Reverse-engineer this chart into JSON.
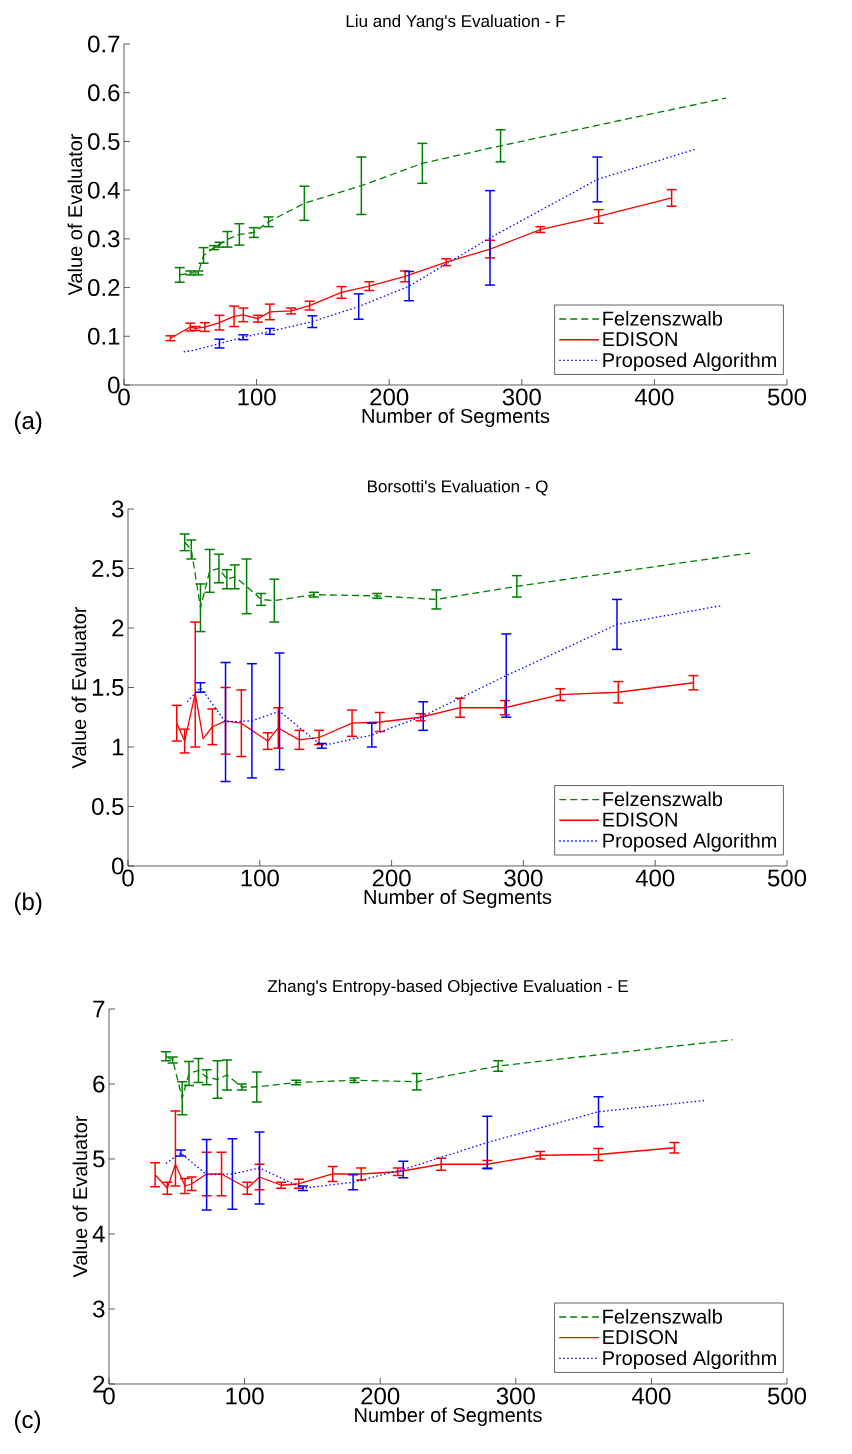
{
  "chart_data": [
    {
      "type": "line",
      "title": "Liu and Yang's Evaluation - F",
      "xlabel": "Number of Segments",
      "ylabel": "Value of Evaluator",
      "annotations": [
        "(a)"
      ],
      "xlim": [
        0,
        500
      ],
      "ylim": [
        0,
        0.7
      ],
      "xticks": [
        0,
        100,
        200,
        300,
        400,
        500
      ],
      "yticks": [
        0,
        0.1,
        0.2,
        0.3,
        0.4,
        0.5,
        0.6,
        0.7
      ],
      "legend": "bottom right",
      "series": [
        {
          "name": "Felzenszwalb",
          "color": "#008000",
          "line_style": "dashed",
          "x": [
            42,
            50,
            56,
            60,
            68,
            72,
            78,
            87,
            98,
            109,
            136,
            179,
            225,
            284,
            454
          ],
          "values": [
            0.226,
            0.23,
            0.23,
            0.266,
            0.282,
            0.288,
            0.299,
            0.309,
            0.313,
            0.335,
            0.373,
            0.409,
            0.455,
            0.491,
            0.589
          ],
          "errors": [
            0.015,
            0.004,
            0.004,
            0.016,
            0.004,
            0.005,
            0.016,
            0.022,
            0.01,
            0.01,
            0.035,
            0.059,
            0.041,
            0.033,
            null
          ]
        },
        {
          "name": "EDISON",
          "color": "#ff0000",
          "line_style": "solid",
          "x": [
            35,
            50,
            54,
            61,
            72,
            83,
            90,
            101,
            110,
            126,
            140,
            164,
            185,
            212,
            243,
            276,
            314,
            358,
            413
          ],
          "values": [
            0.096,
            0.119,
            0.116,
            0.119,
            0.128,
            0.141,
            0.144,
            0.136,
            0.15,
            0.152,
            0.163,
            0.19,
            0.203,
            0.223,
            0.252,
            0.279,
            0.319,
            0.346,
            0.384
          ],
          "errors": [
            0.005,
            0.008,
            0.004,
            0.009,
            0.015,
            0.021,
            0.014,
            0.007,
            0.016,
            0.006,
            0.009,
            0.012,
            0.009,
            0.011,
            0.007,
            0.018,
            0.006,
            0.014,
            0.017
          ]
        },
        {
          "name": "Proposed Algorithm",
          "color": "#0000ff",
          "line_style": "dotted",
          "x": [
            45,
            52,
            72,
            90,
            110,
            142,
            177,
            215,
            276,
            357,
            431
          ],
          "values": [
            0.068,
            0.071,
            0.085,
            0.098,
            0.11,
            0.13,
            0.161,
            0.203,
            0.302,
            0.422,
            0.484
          ],
          "errors": [
            null,
            null,
            0.009,
            0.005,
            0.006,
            0.012,
            0.026,
            0.03,
            0.097,
            0.046,
            null
          ]
        }
      ]
    },
    {
      "type": "line",
      "title": "Borsotti's Evaluation - Q",
      "xlabel": "Number of Segments",
      "ylabel": "Value of Evaluator",
      "annotations": [
        "(b)"
      ],
      "xlim": [
        0,
        500
      ],
      "ylim": [
        0,
        3
      ],
      "xticks": [
        0,
        100,
        200,
        300,
        400,
        500
      ],
      "yticks": [
        0,
        0.5,
        1,
        1.5,
        2,
        2.5,
        3
      ],
      "legend": "bottom right",
      "series": [
        {
          "name": "Felzenszwalb",
          "color": "#008000",
          "line_style": "dashed",
          "x": [
            43,
            48,
            55,
            62,
            69,
            75,
            81,
            90,
            101,
            111,
            141,
            189,
            234,
            295,
            472
          ],
          "values": [
            2.72,
            2.66,
            2.17,
            2.48,
            2.5,
            2.41,
            2.43,
            2.35,
            2.24,
            2.23,
            2.28,
            2.27,
            2.24,
            2.35,
            2.63
          ],
          "errors": [
            0.07,
            0.08,
            0.2,
            0.18,
            0.12,
            0.08,
            0.1,
            0.23,
            0.05,
            0.18,
            0.02,
            0.02,
            0.08,
            0.09,
            null
          ]
        },
        {
          "name": "EDISON",
          "color": "#ff0000",
          "line_style": "solid",
          "x": [
            37,
            43,
            51,
            57,
            64,
            74,
            86,
            106,
            114,
            130,
            145,
            170,
            191,
            222,
            252,
            286,
            328,
            372,
            429
          ],
          "values": [
            1.2,
            1.05,
            1.45,
            1.07,
            1.17,
            1.22,
            1.2,
            1.05,
            1.16,
            1.06,
            1.08,
            1.2,
            1.21,
            1.25,
            1.33,
            1.33,
            1.44,
            1.46,
            1.54
          ],
          "errors": [
            0.15,
            0.1,
            [
              1.0,
              2.05
            ],
            null,
            0.15,
            0.28,
            0.28,
            0.07,
            0.17,
            0.08,
            0.06,
            0.11,
            0.08,
            0.03,
            0.08,
            0.06,
            0.05,
            0.09,
            0.06
          ]
        },
        {
          "name": "Proposed Algorithm",
          "color": "#0000ff",
          "line_style": "dotted",
          "x": [
            45,
            55,
            74,
            94,
            115,
            147,
            185,
            224,
            287,
            371,
            451
          ],
          "values": [
            1.38,
            1.5,
            1.21,
            1.22,
            1.3,
            1.01,
            1.1,
            1.26,
            1.6,
            2.03,
            2.19
          ],
          "errors": [
            null,
            0.04,
            0.5,
            0.48,
            0.49,
            0.02,
            0.1,
            0.12,
            0.35,
            0.21,
            null
          ]
        }
      ]
    },
    {
      "type": "line",
      "title": "Zhang's Entropy-based Objective Evaluation - E",
      "xlabel": "Number of Segments",
      "ylabel": "Value of Evaluator",
      "annotations": [
        "(c)"
      ],
      "xlim": [
        0,
        500
      ],
      "ylim": [
        2,
        7
      ],
      "xticks": [
        0,
        100,
        200,
        300,
        400,
        500
      ],
      "yticks": [
        2,
        3,
        4,
        5,
        6,
        7
      ],
      "legend": "bottom right",
      "series": [
        {
          "name": "Felzenszwalb",
          "color": "#008000",
          "line_style": "dashed",
          "x": [
            42,
            47,
            54,
            59,
            66,
            72,
            80,
            87,
            98,
            109,
            138,
            181,
            227,
            287,
            460
          ],
          "values": [
            6.37,
            6.32,
            5.81,
            6.14,
            6.18,
            6.09,
            6.06,
            6.12,
            5.96,
            5.96,
            6.02,
            6.05,
            6.03,
            6.24,
            6.59
          ],
          "errors": [
            0.06,
            0.04,
            0.22,
            0.16,
            0.16,
            0.1,
            0.25,
            0.2,
            0.04,
            0.2,
            0.03,
            0.03,
            0.11,
            0.07,
            null
          ]
        },
        {
          "name": "EDISON",
          "color": "#ff0000",
          "line_style": "solid",
          "x": [
            34,
            43,
            49,
            56,
            61,
            72,
            83,
            102,
            111,
            127,
            140,
            165,
            186,
            213,
            245,
            279,
            318,
            361,
            417
          ],
          "values": [
            4.79,
            4.61,
            4.93,
            4.64,
            4.67,
            4.8,
            4.8,
            4.61,
            4.76,
            4.65,
            4.67,
            4.8,
            4.8,
            4.83,
            4.93,
            4.93,
            5.05,
            5.06,
            5.15
          ],
          "errors": [
            0.16,
            0.08,
            [
              4.64,
              5.64
            ],
            0.1,
            0.09,
            0.29,
            0.29,
            0.08,
            0.17,
            0.04,
            0.06,
            0.1,
            0.08,
            0.05,
            0.08,
            0.05,
            0.05,
            0.08,
            0.07
          ]
        },
        {
          "name": "Proposed Algorithm",
          "color": "#0000ff",
          "line_style": "dotted",
          "x": [
            42,
            53,
            72,
            91,
            111,
            143,
            180,
            217,
            279,
            361,
            439
          ],
          "values": [
            4.94,
            5.08,
            4.79,
            4.8,
            4.88,
            4.61,
            4.69,
            4.86,
            5.22,
            5.63,
            5.78
          ],
          "errors": [
            null,
            0.04,
            0.47,
            0.47,
            0.48,
            0.03,
            0.1,
            0.11,
            0.35,
            0.2,
            null
          ]
        }
      ]
    }
  ]
}
